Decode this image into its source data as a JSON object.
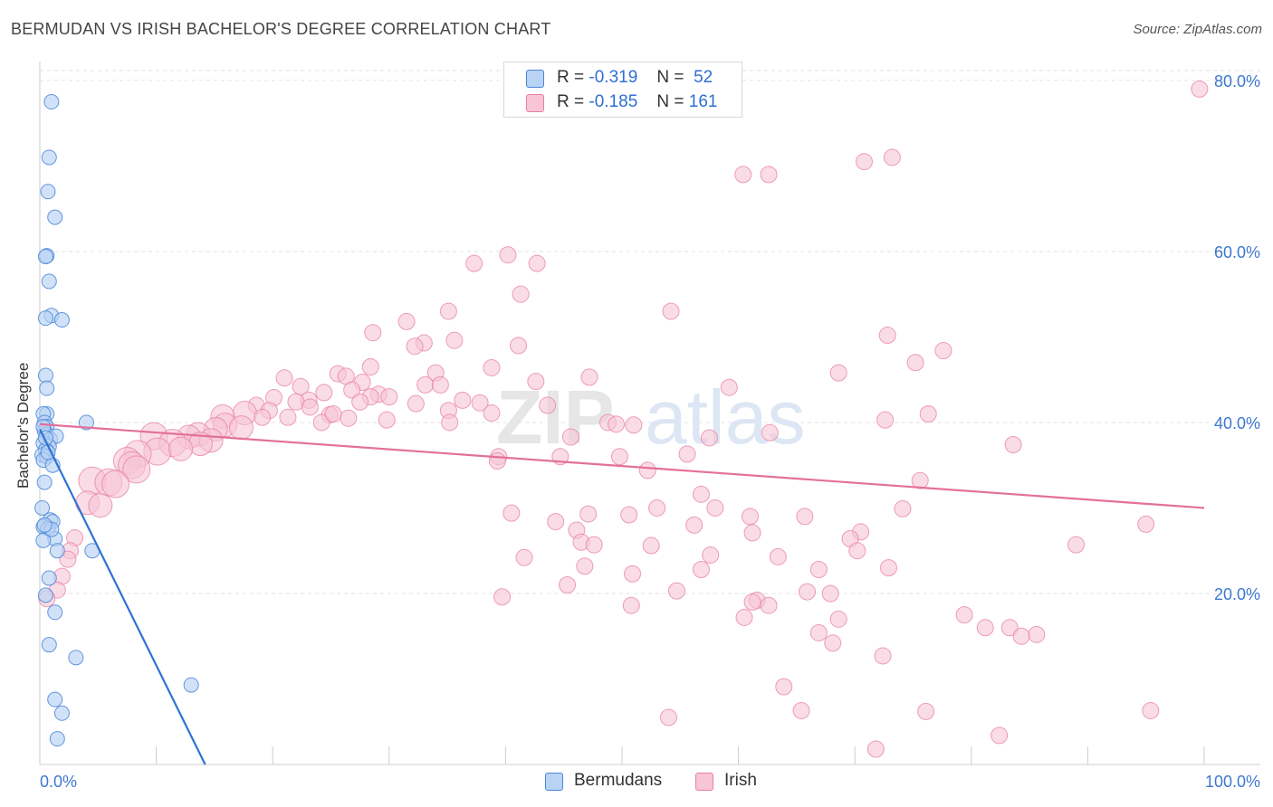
{
  "header": {
    "title": "BERMUDAN VS IRISH BACHELOR'S DEGREE CORRELATION CHART",
    "source": "Source: ZipAtlas.com"
  },
  "legend": {
    "r_label": "R =",
    "n_label": "N =",
    "rows": [
      {
        "name": "Bermudans",
        "r": "-0.319",
        "n": "52"
      },
      {
        "name": "Irish",
        "r": "-0.185",
        "n": "161"
      }
    ]
  },
  "watermark": {
    "part1": "ZIP",
    "part2": "atlas"
  },
  "chart_data": {
    "type": "scatter",
    "title": "BERMUDAN VS IRISH BACHELOR'S DEGREE CORRELATION CHART",
    "xlabel": "",
    "ylabel": "Bachelor's Degree",
    "xlim": [
      0,
      100
    ],
    "ylim": [
      0,
      82
    ],
    "x_tick_labels": [
      "0.0%",
      "100.0%"
    ],
    "y_ticks": [
      20,
      40,
      60,
      80
    ],
    "y_tick_labels": [
      "20.0%",
      "40.0%",
      "60.0%",
      "80.0%"
    ],
    "grid": true,
    "legend_position": "top-center",
    "colors": {
      "bermudans_fill": "#b9d3f5",
      "bermudans_stroke": "#4a86d8",
      "bermudans_line": "#2f72d6",
      "irish_fill": "#f7c5d5",
      "irish_stroke": "#e77fa2",
      "irish_line": "#e3709a",
      "axis_text": "#3d78d0",
      "grid": "#e3e3e3"
    },
    "series": [
      {
        "name": "Bermudans",
        "r": -0.319,
        "n": 52,
        "trend": {
          "x": [
            0,
            14.2
          ],
          "y": [
            39.2,
            0
          ]
        },
        "points": [
          [
            1.0,
            77.5
          ],
          [
            0.8,
            71.0
          ],
          [
            0.7,
            67.0
          ],
          [
            1.3,
            64.0
          ],
          [
            0.6,
            59.5
          ],
          [
            0.5,
            59.4
          ],
          [
            0.8,
            56.5
          ],
          [
            1.0,
            52.5
          ],
          [
            0.5,
            52.2
          ],
          [
            1.9,
            52.0
          ],
          [
            0.5,
            45.5
          ],
          [
            0.6,
            44.0
          ],
          [
            0.6,
            41.0
          ],
          [
            0.3,
            41.0
          ],
          [
            0.4,
            40.0
          ],
          [
            0.6,
            39.5
          ],
          [
            0.4,
            39.0
          ],
          [
            0.6,
            38.6
          ],
          [
            0.9,
            38.0
          ],
          [
            0.3,
            37.6
          ],
          [
            1.4,
            38.4
          ],
          [
            0.8,
            37.2
          ],
          [
            0.5,
            36.8
          ],
          [
            0.2,
            36.2
          ],
          [
            0.6,
            36.0
          ],
          [
            0.3,
            35.6
          ],
          [
            1.1,
            35.0
          ],
          [
            4.0,
            40.0
          ],
          [
            0.4,
            33.0
          ],
          [
            0.2,
            30.0
          ],
          [
            0.9,
            28.6
          ],
          [
            1.1,
            28.4
          ],
          [
            0.3,
            27.8
          ],
          [
            0.7,
            27.6
          ],
          [
            1.3,
            26.4
          ],
          [
            0.3,
            26.2
          ],
          [
            1.5,
            25.0
          ],
          [
            4.5,
            25.0
          ],
          [
            0.8,
            21.8
          ],
          [
            0.5,
            19.8
          ],
          [
            1.3,
            17.8
          ],
          [
            0.8,
            14.0
          ],
          [
            3.1,
            12.5
          ],
          [
            13.0,
            9.3
          ],
          [
            1.3,
            7.6
          ],
          [
            1.9,
            6.0
          ],
          [
            1.5,
            3.0
          ],
          [
            0.3,
            39.5
          ],
          [
            0.5,
            38.2
          ],
          [
            0.7,
            36.5
          ],
          [
            1.0,
            27.5
          ],
          [
            0.4,
            28.0
          ]
        ]
      },
      {
        "name": "Irish",
        "r": -0.185,
        "n": 161,
        "trend": {
          "x": [
            0,
            100
          ],
          "y": [
            39.8,
            30.0
          ]
        },
        "points": [
          [
            99.6,
            79.0
          ],
          [
            73.2,
            71.0
          ],
          [
            70.8,
            70.5
          ],
          [
            60.4,
            69.0
          ],
          [
            62.6,
            69.0
          ],
          [
            40.2,
            59.6
          ],
          [
            37.3,
            58.6
          ],
          [
            42.7,
            58.6
          ],
          [
            41.3,
            55.0
          ],
          [
            54.2,
            53.0
          ],
          [
            35.1,
            53.0
          ],
          [
            31.5,
            51.8
          ],
          [
            28.6,
            50.5
          ],
          [
            72.8,
            50.2
          ],
          [
            33.0,
            49.3
          ],
          [
            35.6,
            49.6
          ],
          [
            32.2,
            48.9
          ],
          [
            41.1,
            49.0
          ],
          [
            77.6,
            48.4
          ],
          [
            75.2,
            47.0
          ],
          [
            28.4,
            46.5
          ],
          [
            38.8,
            46.4
          ],
          [
            34.0,
            45.8
          ],
          [
            25.6,
            45.7
          ],
          [
            26.3,
            45.4
          ],
          [
            21.0,
            45.2
          ],
          [
            68.6,
            45.8
          ],
          [
            47.2,
            45.3
          ],
          [
            42.6,
            44.8
          ],
          [
            27.7,
            44.7
          ],
          [
            22.4,
            44.2
          ],
          [
            33.1,
            44.4
          ],
          [
            26.8,
            43.8
          ],
          [
            59.2,
            44.1
          ],
          [
            24.4,
            43.5
          ],
          [
            29.1,
            43.3
          ],
          [
            28.4,
            43.0
          ],
          [
            20.1,
            42.9
          ],
          [
            23.1,
            42.6
          ],
          [
            22.0,
            42.4
          ],
          [
            27.5,
            42.4
          ],
          [
            36.3,
            42.6
          ],
          [
            37.8,
            42.3
          ],
          [
            18.6,
            42.0
          ],
          [
            32.3,
            42.2
          ],
          [
            23.2,
            41.8
          ],
          [
            19.7,
            41.4
          ],
          [
            35.1,
            41.4
          ],
          [
            17.6,
            41.1
          ],
          [
            24.9,
            40.9
          ],
          [
            15.7,
            40.7
          ],
          [
            19.1,
            40.6
          ],
          [
            21.3,
            40.6
          ],
          [
            38.8,
            41.1
          ],
          [
            72.6,
            40.3
          ],
          [
            76.3,
            41.0
          ],
          [
            29.8,
            40.3
          ],
          [
            24.2,
            40.0
          ],
          [
            15.9,
            39.7
          ],
          [
            17.3,
            39.4
          ],
          [
            35.2,
            40.0
          ],
          [
            48.8,
            40.0
          ],
          [
            49.5,
            39.8
          ],
          [
            51.0,
            39.7
          ],
          [
            15.1,
            39.2
          ],
          [
            57.5,
            38.2
          ],
          [
            45.6,
            38.3
          ],
          [
            62.7,
            38.8
          ],
          [
            13.6,
            38.6
          ],
          [
            12.8,
            38.3
          ],
          [
            14.7,
            37.9
          ],
          [
            9.8,
            38.4
          ],
          [
            13.8,
            37.5
          ],
          [
            11.4,
            37.6
          ],
          [
            83.6,
            37.4
          ],
          [
            10.1,
            36.6
          ],
          [
            8.4,
            36.3
          ],
          [
            39.4,
            36.0
          ],
          [
            44.7,
            36.0
          ],
          [
            49.8,
            36.0
          ],
          [
            55.6,
            36.3
          ],
          [
            7.5,
            35.5
          ],
          [
            39.3,
            35.5
          ],
          [
            7.9,
            35.0
          ],
          [
            52.2,
            34.4
          ],
          [
            8.3,
            34.5
          ],
          [
            75.6,
            33.2
          ],
          [
            4.5,
            33.2
          ],
          [
            5.9,
            33.0
          ],
          [
            56.8,
            31.6
          ],
          [
            4.1,
            30.6
          ],
          [
            5.2,
            30.3
          ],
          [
            58.0,
            30.0
          ],
          [
            53.0,
            30.0
          ],
          [
            74.1,
            29.9
          ],
          [
            40.5,
            29.4
          ],
          [
            47.1,
            29.3
          ],
          [
            65.7,
            29.0
          ],
          [
            61.0,
            29.0
          ],
          [
            50.6,
            29.2
          ],
          [
            56.2,
            28.0
          ],
          [
            44.3,
            28.4
          ],
          [
            46.1,
            27.4
          ],
          [
            95.0,
            28.1
          ],
          [
            61.2,
            27.1
          ],
          [
            70.5,
            27.2
          ],
          [
            69.6,
            26.4
          ],
          [
            3.0,
            26.5
          ],
          [
            46.5,
            26.0
          ],
          [
            52.5,
            25.6
          ],
          [
            47.6,
            25.7
          ],
          [
            89.0,
            25.7
          ],
          [
            2.6,
            25.0
          ],
          [
            57.6,
            24.5
          ],
          [
            63.4,
            24.3
          ],
          [
            41.6,
            24.2
          ],
          [
            2.4,
            24.0
          ],
          [
            70.2,
            25.0
          ],
          [
            72.9,
            23.0
          ],
          [
            46.8,
            23.2
          ],
          [
            50.9,
            22.3
          ],
          [
            56.8,
            22.8
          ],
          [
            66.9,
            22.8
          ],
          [
            1.9,
            22.0
          ],
          [
            45.3,
            21.0
          ],
          [
            1.5,
            20.4
          ],
          [
            54.7,
            20.3
          ],
          [
            65.9,
            20.2
          ],
          [
            67.9,
            20.0
          ],
          [
            39.7,
            19.6
          ],
          [
            61.6,
            19.2
          ],
          [
            61.2,
            19.0
          ],
          [
            62.6,
            18.6
          ],
          [
            50.8,
            18.6
          ],
          [
            79.4,
            17.5
          ],
          [
            60.5,
            17.2
          ],
          [
            68.6,
            17.0
          ],
          [
            0.6,
            19.4
          ],
          [
            81.2,
            16.0
          ],
          [
            83.3,
            16.0
          ],
          [
            85.6,
            15.2
          ],
          [
            84.3,
            15.0
          ],
          [
            66.9,
            15.4
          ],
          [
            68.1,
            14.2
          ],
          [
            72.4,
            12.7
          ],
          [
            63.9,
            9.1
          ],
          [
            95.4,
            6.3
          ],
          [
            76.1,
            6.2
          ],
          [
            65.4,
            6.3
          ],
          [
            82.4,
            3.4
          ],
          [
            71.8,
            1.8
          ],
          [
            54.0,
            5.5
          ],
          [
            30.0,
            43.0
          ],
          [
            43.6,
            42.0
          ],
          [
            26.5,
            40.5
          ],
          [
            34.4,
            44.4
          ],
          [
            25.2,
            41.0
          ],
          [
            12.1,
            36.9
          ],
          [
            6.5,
            32.8
          ]
        ]
      }
    ]
  }
}
